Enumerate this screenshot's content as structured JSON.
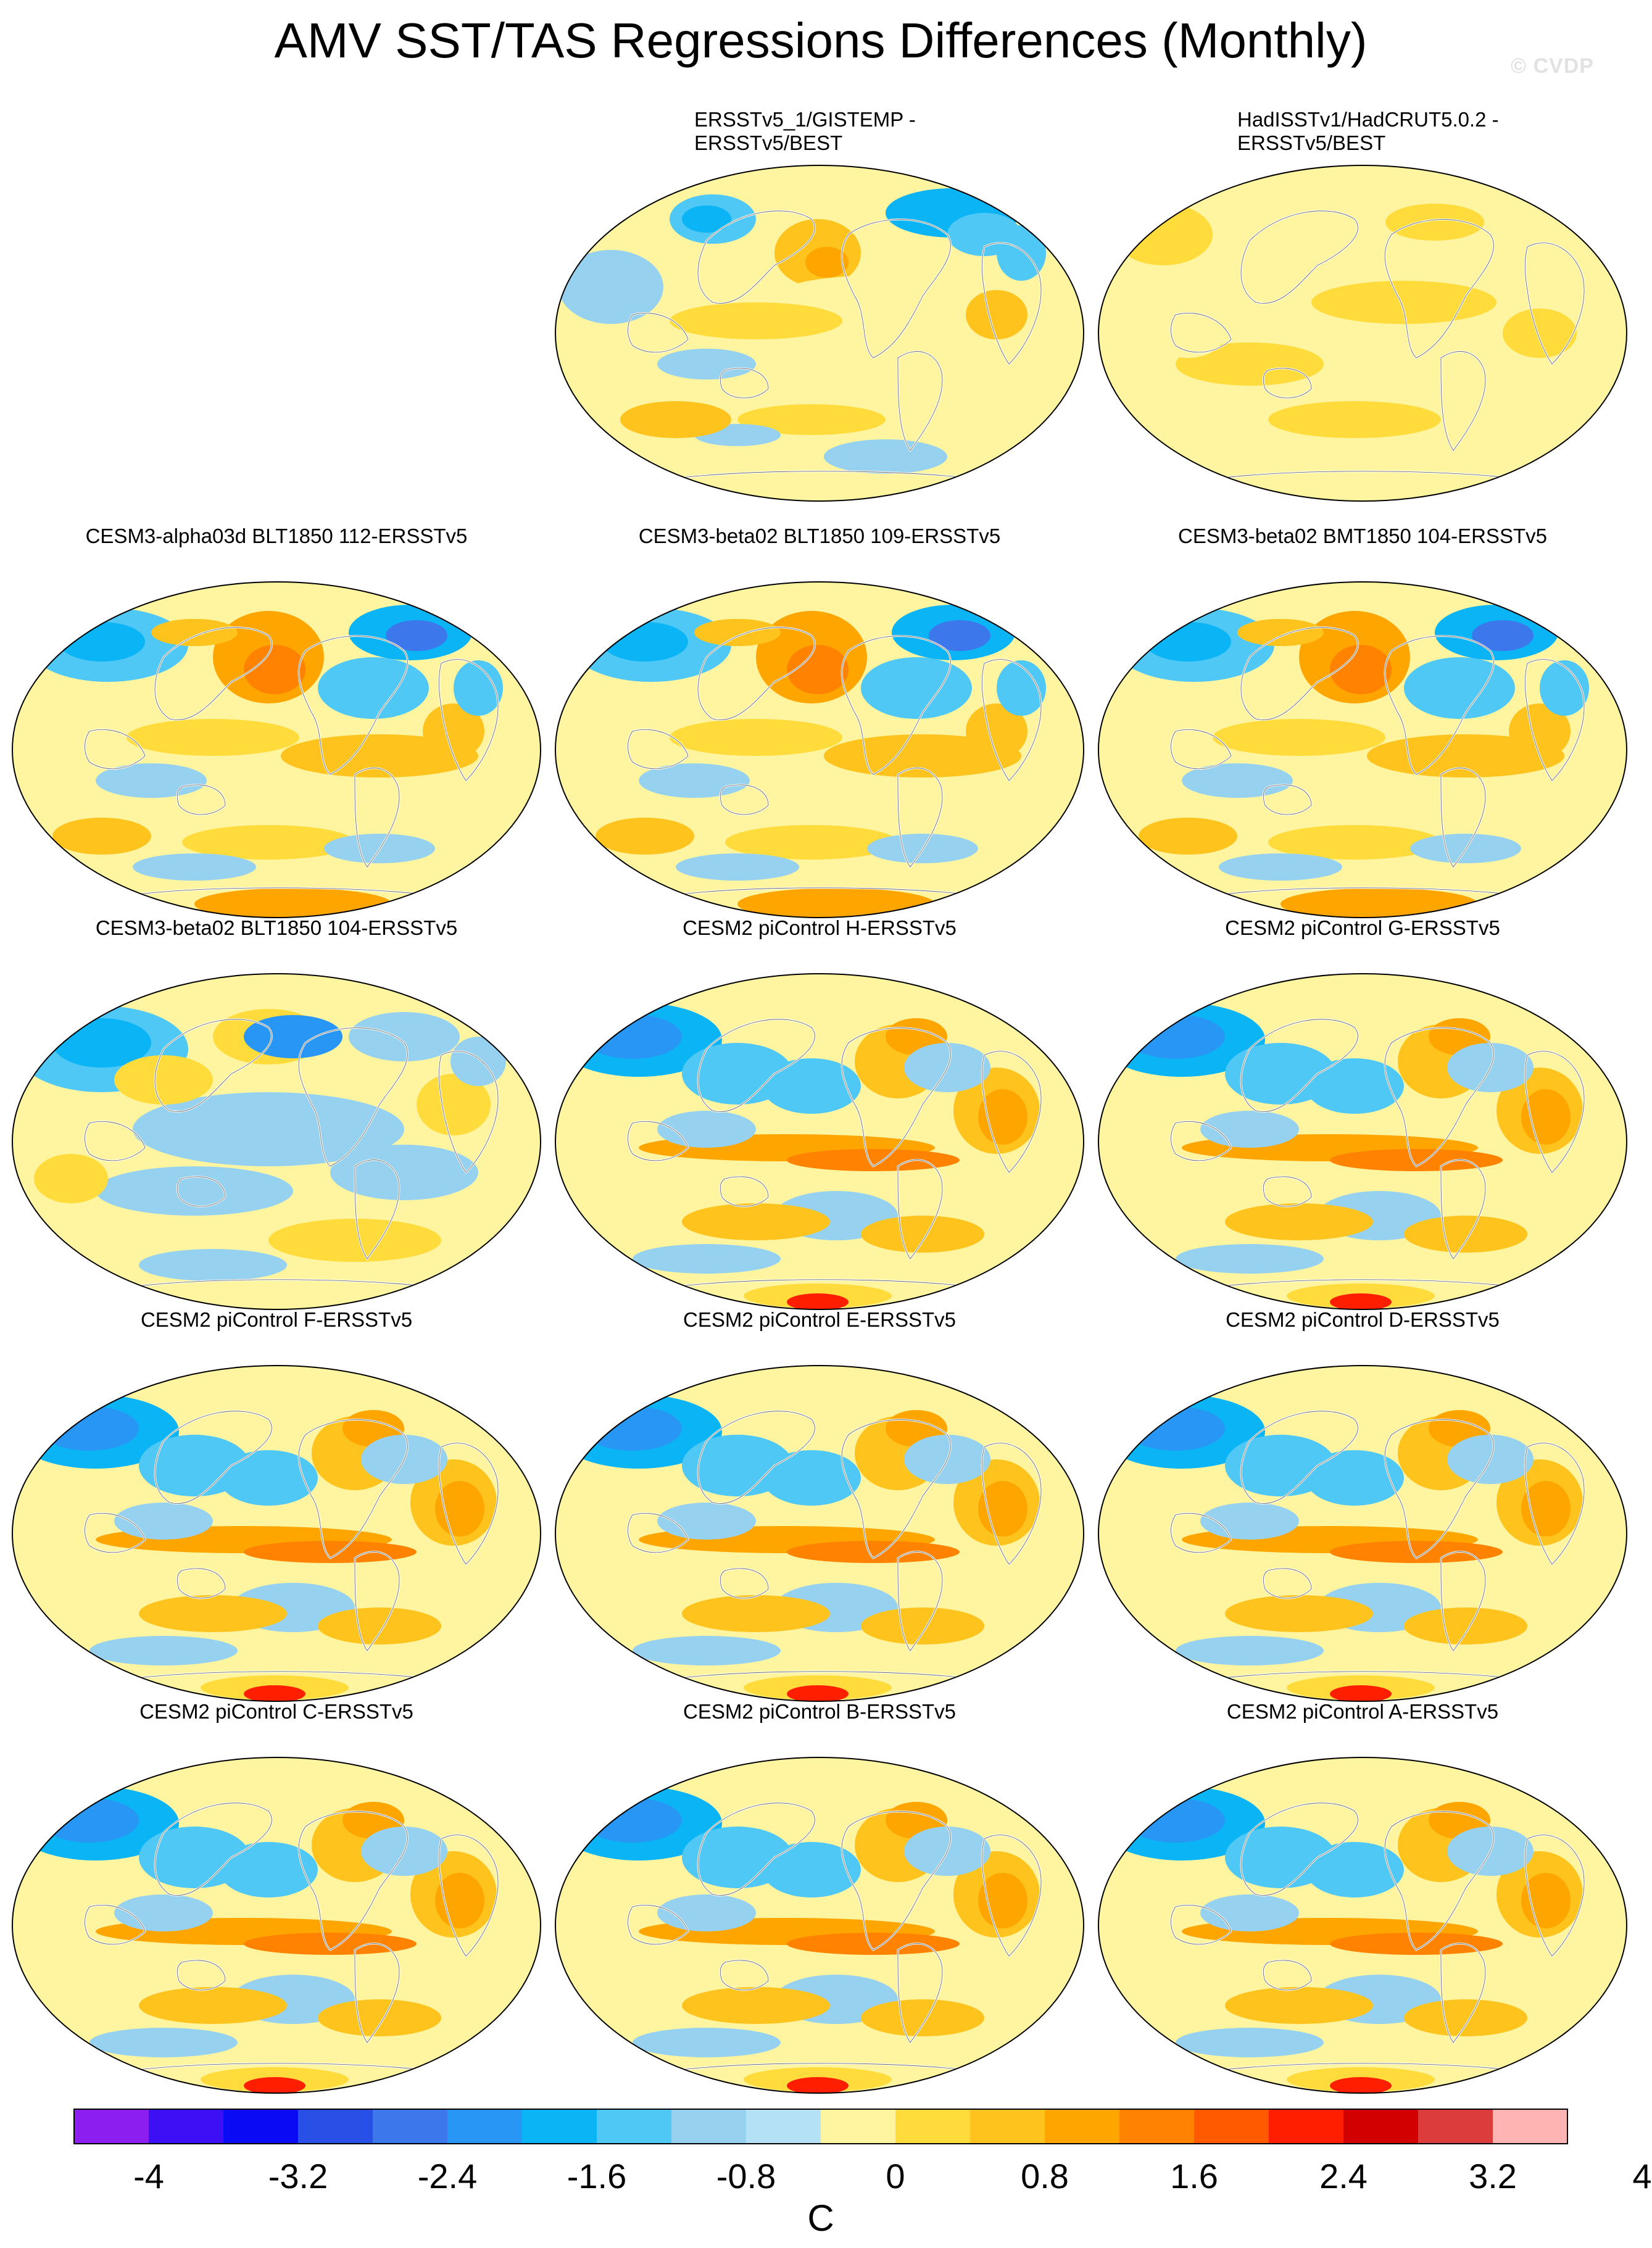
{
  "title": "AMV SST/TAS Regressions Differences (Monthly)",
  "watermark": "© CVDP",
  "panels": [
    {
      "title": "ERSSTv5_1/GISTEMP -\nERSSTv5/BEST",
      "col": 1,
      "row": 0,
      "pattern": "obs1"
    },
    {
      "title": "HadISSTv1/HadCRUT5.0.2 -\nERSSTv5/BEST",
      "col": 2,
      "row": 0,
      "pattern": "obs2"
    },
    {
      "title": "CESM3-alpha03d BLT1850 112-ERSSTv5",
      "col": 0,
      "row": 1,
      "pattern": "mix"
    },
    {
      "title": "CESM3-beta02 BLT1850 109-ERSSTv5",
      "col": 1,
      "row": 1,
      "pattern": "mix"
    },
    {
      "title": "CESM3-beta02 BMT1850 104-ERSSTv5",
      "col": 2,
      "row": 1,
      "pattern": "mix"
    },
    {
      "title": "CESM3-beta02 BLT1850 104-ERSSTv5",
      "col": 0,
      "row": 2,
      "pattern": "cool"
    },
    {
      "title": "CESM2 piControl H-ERSSTv5",
      "col": 1,
      "row": 2,
      "pattern": "warm"
    },
    {
      "title": "CESM2 piControl G-ERSSTv5",
      "col": 2,
      "row": 2,
      "pattern": "warm"
    },
    {
      "title": "CESM2 piControl F-ERSSTv5",
      "col": 0,
      "row": 3,
      "pattern": "warm"
    },
    {
      "title": "CESM2 piControl E-ERSSTv5",
      "col": 1,
      "row": 3,
      "pattern": "warm"
    },
    {
      "title": "CESM2 piControl D-ERSSTv5",
      "col": 2,
      "row": 3,
      "pattern": "warm"
    },
    {
      "title": "CESM2 piControl C-ERSSTv5",
      "col": 0,
      "row": 4,
      "pattern": "warm"
    },
    {
      "title": "CESM2 piControl B-ERSSTv5",
      "col": 1,
      "row": 4,
      "pattern": "warm"
    },
    {
      "title": "CESM2 piControl A-ERSSTv5",
      "col": 2,
      "row": 4,
      "pattern": "warm"
    }
  ],
  "colorbar": {
    "colors": [
      "#8c1ff0",
      "#3c0ff5",
      "#0a0af5",
      "#2850e6",
      "#3c78eb",
      "#2896f5",
      "#0ab4f5",
      "#50c8f5",
      "#96d2f0",
      "#b4e1f5",
      "#fff5a0",
      "#ffdc3c",
      "#ffc31e",
      "#ffa500",
      "#ff8200",
      "#ff5a00",
      "#ff1e00",
      "#d20000",
      "#dc3c3c",
      "#ffb4b4"
    ],
    "labels": [
      "-4",
      "-3.2",
      "-2.4",
      "-1.6",
      "-0.8",
      "0",
      "0.8",
      "1.6",
      "2.4",
      "3.2",
      "4"
    ],
    "units": "C"
  }
}
